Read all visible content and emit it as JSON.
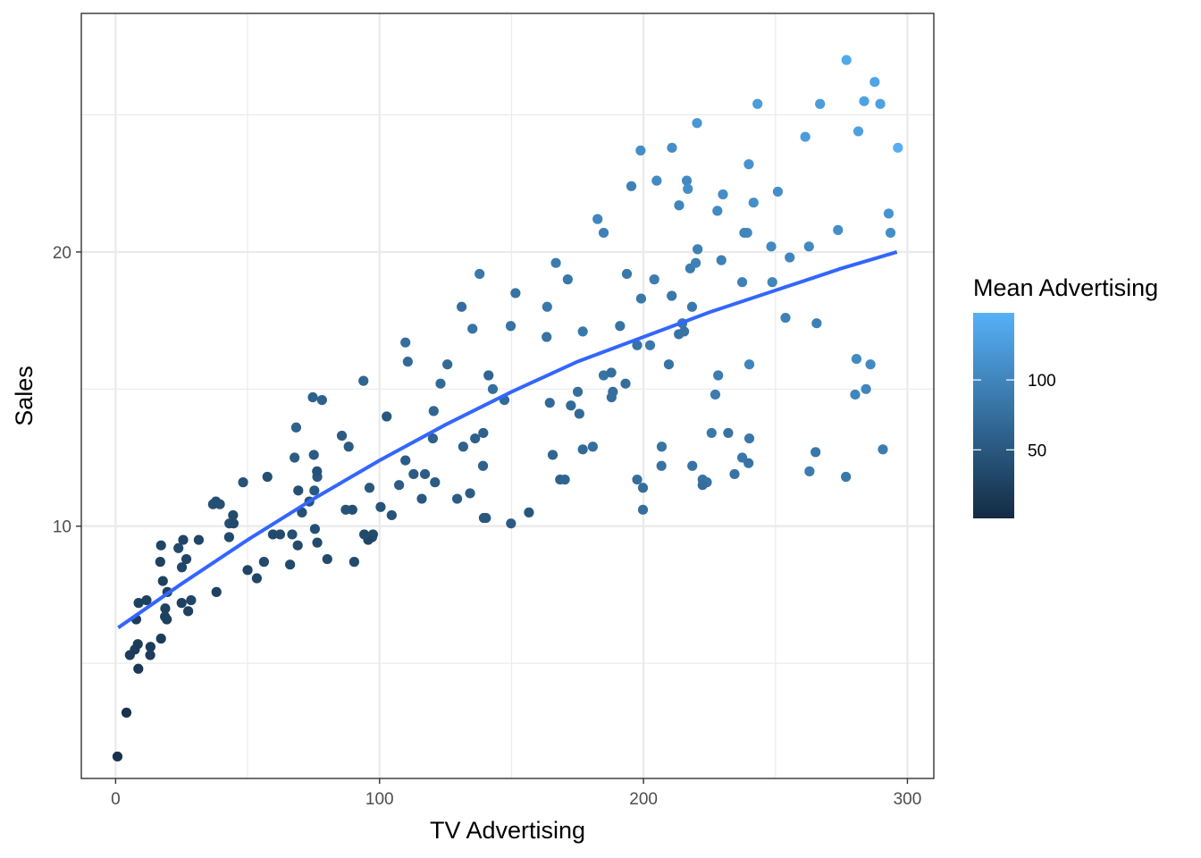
{
  "chart_data": {
    "type": "scatter",
    "title": "",
    "xlabel": "TV Advertising",
    "ylabel": "Sales",
    "xlim": [
      -13,
      310
    ],
    "ylim": [
      0.8,
      28.7
    ],
    "x_ticks": [
      0,
      100,
      200,
      300
    ],
    "y_ticks": [
      10,
      20
    ],
    "grid": true,
    "legend": {
      "title": "Mean Advertising",
      "placement": "right",
      "type": "colorbar",
      "range": [
        1,
        148
      ],
      "ticks": [
        50,
        100
      ],
      "color_low": "#132B43",
      "color_high": "#56B1F7"
    },
    "trend_line": {
      "color": "#3366FF",
      "x": [
        1,
        25,
        50,
        75,
        100,
        125,
        150,
        175,
        200,
        225,
        250,
        275,
        296
      ],
      "y": [
        6.3,
        7.9,
        9.5,
        11.0,
        12.4,
        13.7,
        14.9,
        16.0,
        16.9,
        17.8,
        18.6,
        19.4,
        20.0
      ]
    },
    "points": [
      [
        230.1,
        22.1,
        110
      ],
      [
        44.5,
        10.4,
        35
      ],
      [
        17.2,
        9.3,
        30
      ],
      [
        151.5,
        18.5,
        80
      ],
      [
        180.8,
        12.9,
        75
      ],
      [
        8.7,
        7.2,
        25
      ],
      [
        57.5,
        11.8,
        40
      ],
      [
        120.2,
        13.2,
        60
      ],
      [
        8.6,
        4.8,
        15
      ],
      [
        199.8,
        10.6,
        75
      ],
      [
        66.1,
        8.6,
        35
      ],
      [
        214.7,
        17.4,
        85
      ],
      [
        23.8,
        9.2,
        35
      ],
      [
        97.5,
        9.7,
        35
      ],
      [
        204.1,
        19.0,
        90
      ],
      [
        195.4,
        22.4,
        95
      ],
      [
        67.8,
        12.5,
        55
      ],
      [
        281.4,
        24.4,
        130
      ],
      [
        69.2,
        11.3,
        40
      ],
      [
        147.3,
        14.6,
        70
      ],
      [
        218.4,
        18.0,
        85
      ],
      [
        237.4,
        12.5,
        85
      ],
      [
        13.2,
        5.6,
        20
      ],
      [
        228.3,
        15.5,
        90
      ],
      [
        62.3,
        9.7,
        35
      ],
      [
        262.9,
        12.0,
        90
      ],
      [
        142.9,
        15.0,
        75
      ],
      [
        240.1,
        15.9,
        100
      ],
      [
        248.8,
        18.9,
        100
      ],
      [
        70.6,
        10.5,
        40
      ],
      [
        292.9,
        21.4,
        115
      ],
      [
        112.9,
        11.9,
        55
      ],
      [
        97.2,
        9.6,
        35
      ],
      [
        265.6,
        17.4,
        95
      ],
      [
        95.7,
        9.5,
        30
      ],
      [
        290.7,
        12.8,
        90
      ],
      [
        266.9,
        25.4,
        125
      ],
      [
        74.7,
        14.7,
        60
      ],
      [
        43.1,
        10.1,
        40
      ],
      [
        228.0,
        21.5,
        105
      ],
      [
        202.5,
        16.6,
        85
      ],
      [
        177.0,
        17.1,
        85
      ],
      [
        293.6,
        20.7,
        110
      ],
      [
        206.9,
        12.9,
        80
      ],
      [
        25.1,
        8.5,
        30
      ],
      [
        175.1,
        14.9,
        75
      ],
      [
        89.7,
        10.6,
        40
      ],
      [
        239.9,
        23.2,
        115
      ],
      [
        227.2,
        14.8,
        90
      ],
      [
        66.9,
        9.7,
        40
      ],
      [
        199.8,
        11.4,
        75
      ],
      [
        100.4,
        10.7,
        45
      ],
      [
        216.4,
        22.6,
        105
      ],
      [
        182.6,
        21.2,
        100
      ],
      [
        262.7,
        20.2,
        105
      ],
      [
        198.9,
        23.7,
        110
      ],
      [
        7.3,
        5.5,
        20
      ],
      [
        136.2,
        13.2,
        60
      ],
      [
        210.8,
        23.8,
        110
      ],
      [
        210.7,
        18.4,
        85
      ],
      [
        53.5,
        8.1,
        30
      ],
      [
        261.3,
        24.2,
        125
      ],
      [
        239.3,
        20.7,
        105
      ],
      [
        102.7,
        14.0,
        50
      ],
      [
        131.1,
        18.0,
        75
      ],
      [
        69.0,
        9.3,
        35
      ],
      [
        31.5,
        9.5,
        30
      ],
      [
        139.3,
        13.4,
        60
      ],
      [
        237.4,
        18.9,
        95
      ],
      [
        216.8,
        22.3,
        110
      ],
      [
        199.1,
        18.3,
        85
      ],
      [
        109.8,
        12.4,
        55
      ],
      [
        26.8,
        8.8,
        30
      ],
      [
        129.4,
        11.0,
        55
      ],
      [
        213.4,
        17.0,
        80
      ],
      [
        16.9,
        8.7,
        25
      ],
      [
        27.5,
        6.9,
        25
      ],
      [
        120.5,
        14.2,
        65
      ],
      [
        5.4,
        5.3,
        20
      ],
      [
        116.0,
        11.0,
        50
      ],
      [
        76.4,
        11.8,
        50
      ],
      [
        239.8,
        12.3,
        80
      ],
      [
        75.3,
        11.3,
        50
      ],
      [
        68.4,
        13.6,
        60
      ],
      [
        213.5,
        21.7,
        100
      ],
      [
        193.2,
        15.2,
        75
      ],
      [
        76.3,
        12.0,
        45
      ],
      [
        110.7,
        16.0,
        70
      ],
      [
        88.3,
        12.9,
        55
      ],
      [
        109.8,
        16.7,
        75
      ],
      [
        134.3,
        11.2,
        55
      ],
      [
        28.6,
        7.3,
        30
      ],
      [
        217.7,
        19.4,
        90
      ],
      [
        250.9,
        22.2,
        110
      ],
      [
        107.4,
        11.5,
        55
      ],
      [
        163.3,
        16.9,
        80
      ],
      [
        197.6,
        11.7,
        75
      ],
      [
        184.9,
        15.5,
        80
      ],
      [
        289.7,
        25.4,
        130
      ],
      [
        135.2,
        17.2,
        80
      ],
      [
        222.4,
        11.7,
        80
      ],
      [
        296.4,
        23.8,
        145
      ],
      [
        280.2,
        14.8,
        100
      ],
      [
        187.9,
        14.7,
        75
      ],
      [
        238.2,
        20.7,
        100
      ],
      [
        137.9,
        19.2,
        85
      ],
      [
        25.0,
        7.2,
        25
      ],
      [
        90.4,
        8.7,
        35
      ],
      [
        13.1,
        5.3,
        20
      ],
      [
        255.4,
        19.8,
        100
      ],
      [
        225.8,
        13.4,
        85
      ],
      [
        241.7,
        21.8,
        110
      ],
      [
        175.7,
        14.1,
        70
      ],
      [
        209.6,
        15.9,
        80
      ],
      [
        78.2,
        14.6,
        60
      ],
      [
        75.1,
        12.6,
        55
      ],
      [
        139.2,
        12.2,
        60
      ],
      [
        76.4,
        9.4,
        35
      ],
      [
        125.7,
        15.9,
        70
      ],
      [
        19.4,
        6.6,
        25
      ],
      [
        141.3,
        15.5,
        65
      ],
      [
        18.8,
        7.0,
        25
      ],
      [
        224.0,
        11.6,
        80
      ],
      [
        123.1,
        15.2,
        70
      ],
      [
        229.5,
        19.7,
        95
      ],
      [
        87.2,
        10.6,
        45
      ],
      [
        7.8,
        6.6,
        20
      ],
      [
        80.2,
        8.8,
        35
      ],
      [
        220.3,
        24.7,
        120
      ],
      [
        59.6,
        9.7,
        35
      ],
      [
        0.7,
        1.6,
        10
      ],
      [
        265.2,
        12.7,
        85
      ],
      [
        8.4,
        5.7,
        20
      ],
      [
        219.8,
        19.6,
        95
      ],
      [
        36.9,
        10.8,
        40
      ],
      [
        48.3,
        11.6,
        45
      ],
      [
        25.6,
        9.5,
        30
      ],
      [
        273.7,
        20.8,
        110
      ],
      [
        43.0,
        9.6,
        35
      ],
      [
        184.9,
        20.7,
        95
      ],
      [
        73.4,
        10.9,
        45
      ],
      [
        193.7,
        19.2,
        85
      ],
      [
        220.5,
        20.1,
        95
      ],
      [
        104.6,
        10.4,
        45
      ],
      [
        96.2,
        11.4,
        50
      ],
      [
        140.3,
        10.3,
        50
      ],
      [
        240.1,
        13.2,
        85
      ],
      [
        243.2,
        25.4,
        125
      ],
      [
        38.0,
        10.9,
        40
      ],
      [
        44.7,
        10.1,
        35
      ],
      [
        280.7,
        16.1,
        105
      ],
      [
        121.0,
        11.6,
        55
      ],
      [
        197.6,
        16.6,
        80
      ],
      [
        171.3,
        19.0,
        85
      ],
      [
        187.8,
        15.6,
        75
      ],
      [
        4.1,
        3.2,
        10
      ],
      [
        93.9,
        15.3,
        65
      ],
      [
        149.8,
        10.1,
        55
      ],
      [
        11.7,
        7.3,
        25
      ],
      [
        131.7,
        12.9,
        60
      ],
      [
        172.5,
        14.4,
        70
      ],
      [
        85.7,
        13.3,
        55
      ],
      [
        188.4,
        14.9,
        75
      ],
      [
        163.5,
        18.0,
        85
      ],
      [
        117.2,
        11.9,
        55
      ],
      [
        234.5,
        11.9,
        80
      ],
      [
        17.9,
        8.0,
        25
      ],
      [
        206.8,
        12.2,
        80
      ],
      [
        215.4,
        17.1,
        80
      ],
      [
        284.3,
        15.0,
        100
      ],
      [
        50.0,
        8.4,
        30
      ],
      [
        164.5,
        14.5,
        70
      ],
      [
        19.6,
        7.6,
        25
      ],
      [
        168.4,
        11.7,
        60
      ],
      [
        222.4,
        11.5,
        75
      ],
      [
        276.9,
        27.0,
        140
      ],
      [
        248.4,
        20.2,
        105
      ],
      [
        170.2,
        11.7,
        65
      ],
      [
        276.7,
        11.8,
        85
      ],
      [
        165.6,
        12.6,
        65
      ],
      [
        156.6,
        10.5,
        50
      ],
      [
        218.5,
        12.2,
        80
      ],
      [
        56.2,
        8.7,
        35
      ],
      [
        287.6,
        26.2,
        135
      ],
      [
        253.8,
        17.6,
        95
      ],
      [
        205.0,
        22.6,
        105
      ],
      [
        139.5,
        10.3,
        50
      ],
      [
        191.1,
        17.3,
        80
      ],
      [
        286.0,
        15.9,
        105
      ],
      [
        18.7,
        6.7,
        25
      ],
      [
        39.5,
        10.8,
        40
      ],
      [
        75.5,
        9.9,
        40
      ],
      [
        17.2,
        5.9,
        20
      ],
      [
        166.8,
        19.6,
        90
      ],
      [
        149.7,
        17.3,
        80
      ],
      [
        38.2,
        7.6,
        25
      ],
      [
        94.2,
        9.7,
        35
      ],
      [
        177.0,
        12.8,
        70
      ],
      [
        283.6,
        25.5,
        130
      ],
      [
        232.1,
        13.4,
        80
      ]
    ]
  }
}
